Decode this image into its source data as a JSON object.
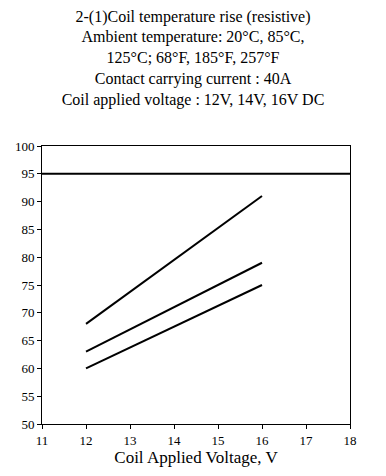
{
  "chart_data": {
    "type": "line",
    "title": [
      "2-(1)Coil temperature rise (resistive)",
      "Ambient temperature: 20°C, 85°C,",
      "125°C; 68°F, 185°F, 257°F",
      "Contact carrying current : 40A",
      "Coil applied voltage : 12V, 14V, 16V DC"
    ],
    "x_label": "Coil Applied Voltage, V",
    "series": [
      {
        "x": [
          12,
          14,
          16
        ],
        "values": [
          68,
          79.5,
          91
        ],
        "color": "#000000"
      },
      {
        "x": [
          12,
          14,
          16
        ],
        "values": [
          63,
          71,
          79
        ],
        "color": "#000000"
      },
      {
        "x": [
          12,
          14,
          16
        ],
        "values": [
          60,
          67.5,
          75
        ],
        "color": "#000000"
      },
      {
        "x": [
          11,
          18
        ],
        "values": [
          95,
          95
        ],
        "color": "#000000"
      }
    ],
    "xlim": [
      11,
      18
    ],
    "xticks": [
      11,
      12,
      13,
      14,
      15,
      16,
      17,
      18
    ],
    "ylim": [
      50,
      100
    ],
    "yticks": [
      50,
      55,
      60,
      65,
      70,
      75,
      80,
      85,
      90,
      95,
      100
    ],
    "grid": false
  }
}
